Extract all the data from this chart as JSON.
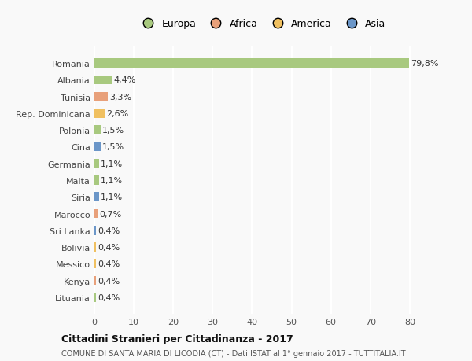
{
  "countries": [
    "Romania",
    "Albania",
    "Tunisia",
    "Rep. Dominicana",
    "Polonia",
    "Cina",
    "Germania",
    "Malta",
    "Siria",
    "Marocco",
    "Sri Lanka",
    "Bolivia",
    "Messico",
    "Kenya",
    "Lituania"
  ],
  "values": [
    79.8,
    4.4,
    3.3,
    2.6,
    1.5,
    1.5,
    1.1,
    1.1,
    1.1,
    0.7,
    0.4,
    0.4,
    0.4,
    0.4,
    0.4
  ],
  "labels": [
    "79,8%",
    "4,4%",
    "3,3%",
    "2,6%",
    "1,5%",
    "1,5%",
    "1,1%",
    "1,1%",
    "1,1%",
    "0,7%",
    "0,4%",
    "0,4%",
    "0,4%",
    "0,4%",
    "0,4%"
  ],
  "continents": [
    "Europa",
    "Europa",
    "Africa",
    "America",
    "Europa",
    "Asia",
    "Europa",
    "Europa",
    "Asia",
    "Africa",
    "Asia",
    "America",
    "America",
    "Africa",
    "Europa"
  ],
  "continent_colors": {
    "Europa": "#a8c97f",
    "Africa": "#e8a07a",
    "America": "#f0c060",
    "Asia": "#6b96c8"
  },
  "legend_order": [
    "Europa",
    "Africa",
    "America",
    "Asia"
  ],
  "title_bold": "Cittadini Stranieri per Cittadinanza - 2017",
  "subtitle": "COMUNE DI SANTA MARIA DI LICODIA (CT) - Dati ISTAT al 1° gennaio 2017 - TUTTITALIA.IT",
  "xlim": [
    0,
    85
  ],
  "xticks": [
    0,
    10,
    20,
    30,
    40,
    50,
    60,
    70,
    80
  ],
  "background_color": "#f9f9f9",
  "grid_color": "#ffffff",
  "bar_height": 0.55,
  "label_fontsize": 8,
  "tick_fontsize": 8
}
